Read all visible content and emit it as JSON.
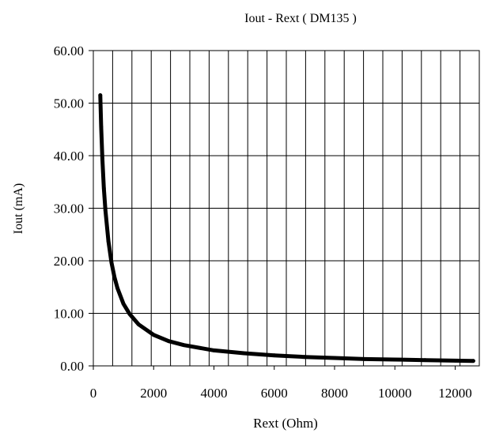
{
  "chart_data": {
    "type": "line",
    "title": "Iout - Rext ( DM135 )",
    "xlabel": "Rext (Ohm)",
    "ylabel": "Iout (mA)",
    "xlim": [
      0,
      12800
    ],
    "ylim": [
      0,
      60
    ],
    "x_ticks": [
      0,
      2000,
      4000,
      6000,
      8000,
      10000,
      12000
    ],
    "x_tick_labels": [
      "0",
      "2000",
      "4000",
      "6000",
      "8000",
      "10000",
      "12000"
    ],
    "y_ticks": [
      0,
      10,
      20,
      30,
      40,
      50,
      60
    ],
    "y_tick_labels": [
      "0.00",
      "10.00",
      "20.00",
      "30.00",
      "40.00",
      "50.00",
      "60.00"
    ],
    "grid": {
      "vertical_step": 640,
      "horizontal_step": 10
    },
    "legend": "none",
    "series_color": "#000000",
    "series": [
      {
        "x": [
          230,
          260,
          300,
          350,
          400,
          500,
          600,
          700,
          800,
          1000,
          1200,
          1500,
          2000,
          2500,
          3000,
          4000,
          5000,
          6000,
          7000,
          8000,
          9000,
          10000,
          11000,
          12000,
          12600
        ],
        "y": [
          51.5,
          45.5,
          39.5,
          33.8,
          29.6,
          23.7,
          19.7,
          16.9,
          14.8,
          11.8,
          9.9,
          7.9,
          5.9,
          4.7,
          3.95,
          2.95,
          2.4,
          2.0,
          1.7,
          1.5,
          1.3,
          1.2,
          1.1,
          1.0,
          0.95
        ]
      }
    ]
  }
}
